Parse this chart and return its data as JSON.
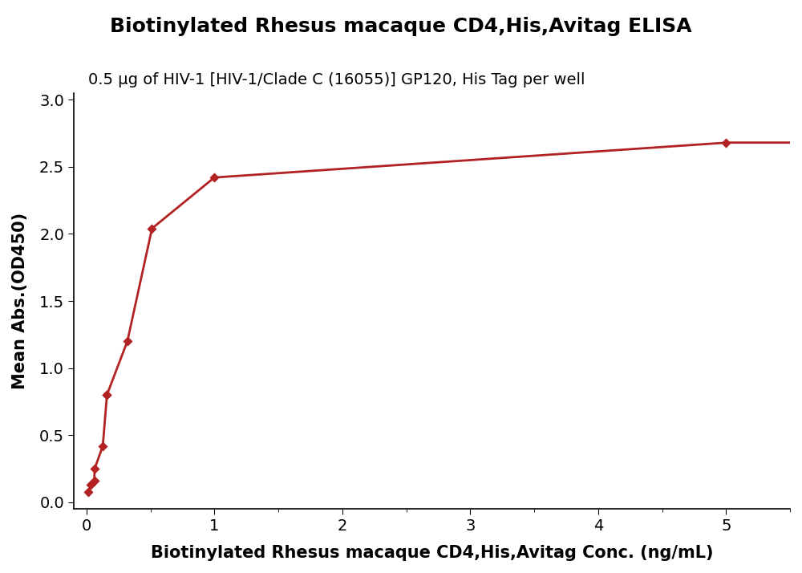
{
  "title": "Biotinylated Rhesus macaque CD4,His,Avitag ELISA",
  "subtitle": "0.5 μg of HIV-1 [HIV-1/Clade C (16055)] GP120, His Tag per well",
  "xlabel": "Biotinylated Rhesus macaque CD4,His,Avitag Conc. (ng/mL)",
  "ylabel": "Mean Abs.(OD450)",
  "scatter_x": [
    0.016,
    0.032,
    0.064,
    0.064,
    0.128,
    0.16,
    0.16,
    0.32,
    0.512,
    1.0,
    5.0
  ],
  "scatter_y": [
    0.08,
    0.13,
    0.16,
    0.25,
    0.42,
    0.8,
    0.8,
    1.2,
    2.04,
    2.42,
    2.68
  ],
  "color": "#b22222",
  "xlim": [
    -0.1,
    5.5
  ],
  "ylim": [
    -0.05,
    3.05
  ],
  "xticks": [
    0,
    1,
    2,
    3,
    4,
    5
  ],
  "yticks": [
    0.0,
    0.5,
    1.0,
    1.5,
    2.0,
    2.5,
    3.0
  ],
  "title_fontsize": 18,
  "subtitle_fontsize": 14,
  "label_fontsize": 15,
  "tick_fontsize": 14,
  "line_width": 2.0,
  "marker_size": 8,
  "background_color": "#ffffff",
  "minor_xticks": [
    0.5,
    1.5,
    2.5,
    3.5,
    4.5
  ]
}
